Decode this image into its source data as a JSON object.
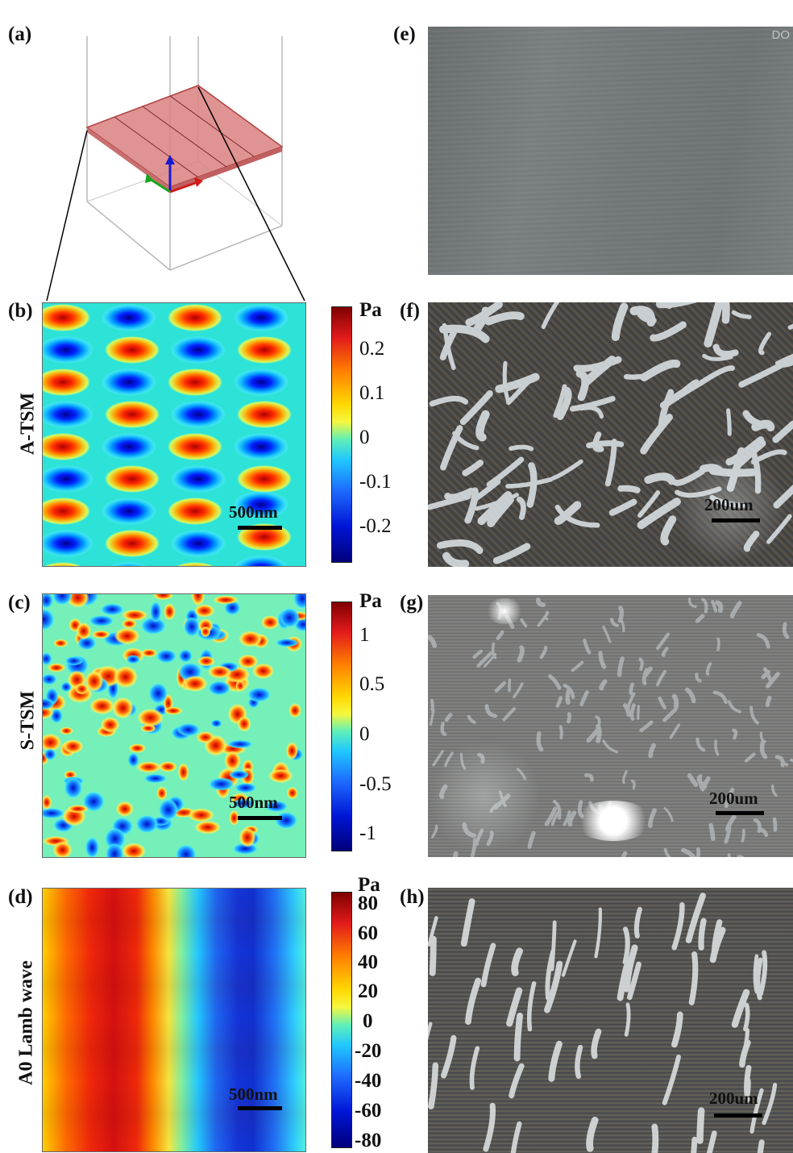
{
  "panels": {
    "a": "(a)",
    "b": "(b)",
    "c": "(c)",
    "d": "(d)",
    "e": "(e)",
    "f": "(f)",
    "g": "(g)",
    "h": "(h)"
  },
  "row_labels": {
    "b": "A-TSM",
    "c": "S-TSM",
    "d": "A0 Lamb wave"
  },
  "colorbars": {
    "b": {
      "unit": "Pa",
      "ticks": [
        "0.2",
        "0.1",
        "0",
        "-0.1",
        "-0.2"
      ]
    },
    "c": {
      "unit": "Pa",
      "ticks": [
        "1",
        "0.5",
        "0",
        "-0.5",
        "-1"
      ]
    },
    "d": {
      "unit": "Pa",
      "ticks": [
        "80",
        "60",
        "40",
        "20",
        "0",
        "-20",
        "-40",
        "-60",
        "-80"
      ]
    }
  },
  "scalebars": {
    "b": "500nm",
    "c": "500nm",
    "d": "500nm",
    "f": "200um",
    "g": "200um",
    "h": "200um"
  },
  "watermark": "DO",
  "colors": {
    "plate": "#d98080",
    "plate_edge": "#b04040",
    "axis_x": "#d11a1a",
    "axis_y": "#1aa61a",
    "axis_z": "#1a1ad1"
  }
}
